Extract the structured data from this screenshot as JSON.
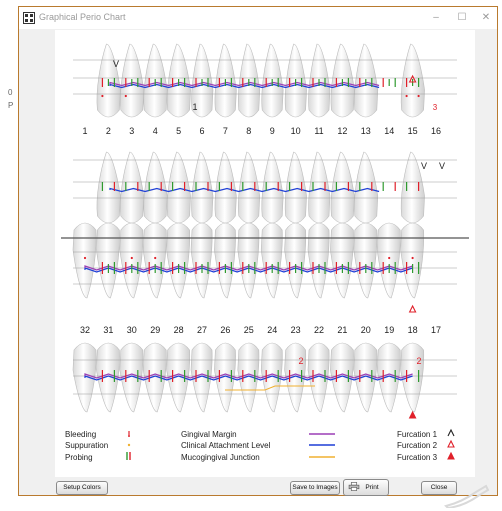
{
  "window": {
    "title": "Graphical Perio Chart",
    "minimize_glyph": "–",
    "maximize_glyph": "☐",
    "close_glyph": "✕"
  },
  "upper_tooth_numbers": [
    "1",
    "2",
    "3",
    "4",
    "5",
    "6",
    "7",
    "8",
    "9",
    "10",
    "11",
    "12",
    "13",
    "14",
    "15",
    "16"
  ],
  "lower_tooth_numbers": [
    "32",
    "31",
    "30",
    "29",
    "28",
    "27",
    "26",
    "25",
    "24",
    "23",
    "22",
    "21",
    "20",
    "19",
    "18",
    "17"
  ],
  "annotations": {
    "upper_buccal_number": "1",
    "upper_buccal_number_right": "3",
    "lower_lingual_number_center": "2",
    "lower_lingual_number_right": "2",
    "upper_buccal_furcation_left": "V",
    "upper_lingual_furcation_a": "V",
    "upper_lingual_furcation_b": "V"
  },
  "legend": {
    "bleeding": "Bleeding",
    "suppuration": "Suppuration",
    "probing": "Probing",
    "gingival_margin": "Gingival Margin",
    "clinical_attachment_level": "Clinical Attachment Level",
    "mucogingival_junction": "Mucogingival Junction",
    "furcation_1": "Furcation 1",
    "furcation_2": "Furcation 2",
    "furcation_3": "Furcation 3"
  },
  "colors": {
    "gingival_margin": "#9b3fb5",
    "clinical_attachment_level": "#1f3fd6",
    "mucogingival_junction": "#f0b030",
    "bleeding": "#e0202a",
    "suppuration": "#f0b030",
    "probing_green": "#2f9a2f",
    "probing_red": "#e0202a",
    "window_border": "#b97a2e"
  },
  "edge_text": [
    "0",
    "P"
  ],
  "buttons": {
    "setup_colors": "Setup Colors",
    "save_to_images": "Save to Images",
    "print": "Print",
    "close": "Close"
  }
}
